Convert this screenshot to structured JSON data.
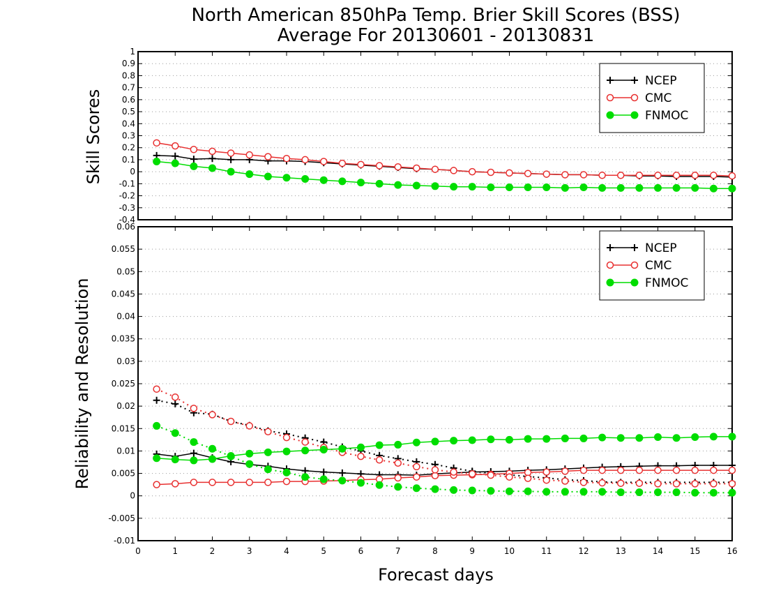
{
  "title_line1": "North American 850hPa Temp. Brier Skill Scores (BSS)",
  "title_line2": "Average For 20130601 - 20130831",
  "xlabel": "Forecast days",
  "colors": {
    "NCEP": "#000000",
    "CMC": "#e83030",
    "FNMOC": "#00dd00",
    "grid": "#999999"
  },
  "chart_data": [
    {
      "type": "line",
      "ylabel": "Skill Scores",
      "xlim": [
        0,
        16
      ],
      "ylim": [
        -0.4,
        1
      ],
      "xticks": [
        "0",
        "1",
        "2",
        "3",
        "4",
        "5",
        "6",
        "7",
        "8",
        "9",
        "10",
        "11",
        "12",
        "13",
        "14",
        "15",
        "16"
      ],
      "yticks": [
        "-0.4",
        "-0.3",
        "-0.2",
        "-0.1",
        "0",
        "0.1",
        "0.2",
        "0.3",
        "0.4",
        "0.5",
        "0.6",
        "0.7",
        "0.8",
        "0.9",
        "1"
      ],
      "grid": true,
      "legend": "top-right",
      "x": [
        0.5,
        1,
        1.5,
        2,
        2.5,
        3,
        3.5,
        4,
        4.5,
        5,
        5.5,
        6,
        6.5,
        7,
        7.5,
        8,
        8.5,
        9,
        9.5,
        10,
        10.5,
        11,
        11.5,
        12,
        12.5,
        13,
        13.5,
        14,
        14.5,
        15,
        15.5,
        16
      ],
      "series": [
        {
          "name": "NCEP",
          "marker": "plus",
          "style": "solid",
          "values": [
            0.135,
            0.13,
            0.105,
            0.11,
            0.1,
            0.1,
            0.09,
            0.09,
            0.085,
            0.075,
            0.065,
            0.055,
            0.045,
            0.035,
            0.025,
            0.02,
            0.01,
            0.0,
            -0.005,
            -0.01,
            -0.015,
            -0.02,
            -0.025,
            -0.025,
            -0.03,
            -0.03,
            -0.035,
            -0.035,
            -0.04,
            -0.04,
            -0.04,
            -0.045
          ]
        },
        {
          "name": "CMC",
          "marker": "open-circle",
          "style": "solid",
          "values": [
            0.24,
            0.215,
            0.185,
            0.17,
            0.155,
            0.14,
            0.125,
            0.11,
            0.1,
            0.085,
            0.07,
            0.06,
            0.05,
            0.04,
            0.03,
            0.02,
            0.01,
            0.0,
            -0.005,
            -0.01,
            -0.015,
            -0.02,
            -0.025,
            -0.025,
            -0.03,
            -0.03,
            -0.03,
            -0.03,
            -0.03,
            -0.03,
            -0.03,
            -0.035
          ]
        },
        {
          "name": "FNMOC",
          "marker": "filled-circle",
          "style": "solid",
          "values": [
            0.085,
            0.07,
            0.045,
            0.03,
            0.0,
            -0.02,
            -0.04,
            -0.05,
            -0.06,
            -0.07,
            -0.08,
            -0.09,
            -0.1,
            -0.11,
            -0.115,
            -0.12,
            -0.125,
            -0.125,
            -0.13,
            -0.13,
            -0.13,
            -0.13,
            -0.135,
            -0.13,
            -0.135,
            -0.135,
            -0.135,
            -0.135,
            -0.135,
            -0.135,
            -0.14,
            -0.14
          ]
        }
      ]
    },
    {
      "type": "line",
      "ylabel": "Reliability and Resolution",
      "xlim": [
        0,
        16
      ],
      "ylim": [
        -0.01,
        0.06
      ],
      "xticks": [
        "0",
        "1",
        "2",
        "3",
        "4",
        "5",
        "6",
        "7",
        "8",
        "9",
        "10",
        "11",
        "12",
        "13",
        "14",
        "15",
        "16"
      ],
      "yticks": [
        "-0.01",
        "-0.005",
        "0",
        "0.005",
        "0.01",
        "0.015",
        "0.02",
        "0.025",
        "0.03",
        "0.035",
        "0.04",
        "0.045",
        "0.05",
        "0.055",
        "0.06"
      ],
      "grid": true,
      "legend": "top-right",
      "x": [
        0.5,
        1,
        1.5,
        2,
        2.5,
        3,
        3.5,
        4,
        4.5,
        5,
        5.5,
        6,
        6.5,
        7,
        7.5,
        8,
        8.5,
        9,
        9.5,
        10,
        10.5,
        11,
        11.5,
        12,
        12.5,
        13,
        13.5,
        14,
        14.5,
        15,
        15.5,
        16
      ],
      "series": [
        {
          "name": "NCEP",
          "marker": "plus",
          "style": "solid",
          "legend": true,
          "values": [
            0.0093,
            0.0088,
            0.0095,
            0.0085,
            0.0076,
            0.007,
            0.0066,
            0.006,
            0.0056,
            0.0053,
            0.0051,
            0.0049,
            0.0047,
            0.0047,
            0.0046,
            0.0049,
            0.0051,
            0.0053,
            0.0054,
            0.0055,
            0.0057,
            0.0058,
            0.006,
            0.0062,
            0.0064,
            0.0065,
            0.0066,
            0.0067,
            0.0067,
            0.0068,
            0.0068,
            0.0068
          ]
        },
        {
          "name": "NCEP",
          "marker": "plus",
          "style": "dotted",
          "legend": false,
          "values": [
            0.0213,
            0.0205,
            0.0185,
            0.0182,
            0.0166,
            0.0157,
            0.0145,
            0.0138,
            0.0129,
            0.012,
            0.0109,
            0.01,
            0.009,
            0.0083,
            0.0076,
            0.007,
            0.0062,
            0.0055,
            0.005,
            0.0047,
            0.0043,
            0.004,
            0.0036,
            0.0034,
            0.0031,
            0.003,
            0.003,
            0.003,
            0.003,
            0.003,
            0.003,
            0.003
          ]
        },
        {
          "name": "CMC",
          "marker": "open-circle",
          "style": "solid",
          "legend": true,
          "values": [
            0.0025,
            0.0027,
            0.003,
            0.003,
            0.003,
            0.003,
            0.003,
            0.0032,
            0.0032,
            0.0033,
            0.0034,
            0.0036,
            0.0037,
            0.004,
            0.0042,
            0.0045,
            0.0046,
            0.0047,
            0.0048,
            0.005,
            0.0052,
            0.0053,
            0.0055,
            0.0057,
            0.0057,
            0.0057,
            0.0057,
            0.0057,
            0.0057,
            0.0057,
            0.0057,
            0.0057
          ]
        },
        {
          "name": "CMC",
          "marker": "open-circle",
          "style": "dotted",
          "legend": false,
          "values": [
            0.0238,
            0.022,
            0.0195,
            0.0181,
            0.0166,
            0.0156,
            0.0143,
            0.013,
            0.012,
            0.0108,
            0.0097,
            0.0088,
            0.008,
            0.0073,
            0.0065,
            0.0058,
            0.0053,
            0.0049,
            0.0046,
            0.0042,
            0.0039,
            0.0035,
            0.0033,
            0.003,
            0.0029,
            0.0028,
            0.0028,
            0.0027,
            0.0027,
            0.0027,
            0.0027,
            0.0027
          ]
        },
        {
          "name": "FNMOC",
          "marker": "filled-circle",
          "style": "solid",
          "legend": true,
          "values": [
            0.0084,
            0.0081,
            0.0079,
            0.0082,
            0.0089,
            0.0094,
            0.0097,
            0.0099,
            0.0101,
            0.0103,
            0.0105,
            0.0108,
            0.0113,
            0.0114,
            0.0119,
            0.0121,
            0.0123,
            0.0124,
            0.0126,
            0.0125,
            0.0127,
            0.0127,
            0.0128,
            0.0128,
            0.013,
            0.0129,
            0.0129,
            0.0131,
            0.0129,
            0.0131,
            0.0132,
            0.0132
          ]
        },
        {
          "name": "FNMOC",
          "marker": "filled-circle",
          "style": "dotted",
          "legend": false,
          "values": [
            0.0156,
            0.014,
            0.012,
            0.0105,
            0.0088,
            0.0071,
            0.0059,
            0.0052,
            0.0042,
            0.0037,
            0.0034,
            0.0029,
            0.0024,
            0.002,
            0.0017,
            0.0015,
            0.0013,
            0.0012,
            0.0011,
            0.001,
            0.001,
            0.0009,
            0.0009,
            0.0009,
            0.0009,
            0.0008,
            0.0008,
            0.0008,
            0.0008,
            0.0007,
            0.0007,
            0.0007
          ]
        }
      ]
    }
  ]
}
